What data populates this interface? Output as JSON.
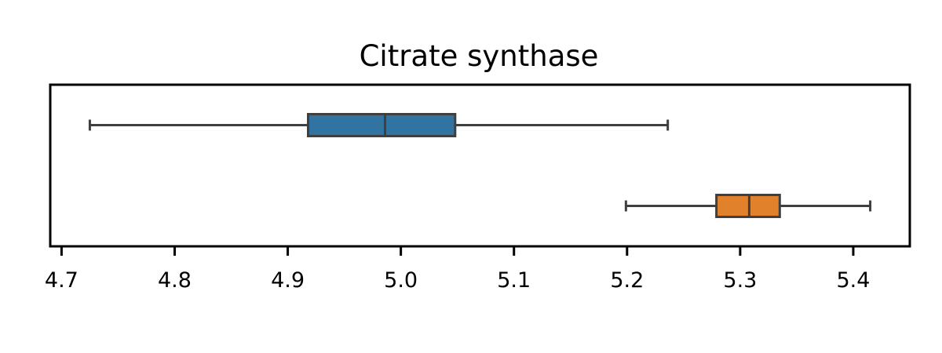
{
  "chart_data": {
    "type": "box",
    "orientation": "horizontal",
    "title": "Citrate synthase",
    "xlabel": "",
    "ylabel": "",
    "xlim": [
      4.69,
      5.45
    ],
    "xticks": [
      "4.7",
      "4.8",
      "4.9",
      "5.0",
      "5.1",
      "5.2",
      "5.3",
      "5.4"
    ],
    "grid": false,
    "series": [
      {
        "color": "#3274a1",
        "whisker_low": 4.725,
        "q1": 4.918,
        "median": 4.986,
        "q3": 5.048,
        "whisker_high": 5.236
      },
      {
        "color": "#e1812c",
        "whisker_low": 5.199,
        "q1": 5.279,
        "median": 5.308,
        "q3": 5.335,
        "whisker_high": 5.415
      }
    ]
  }
}
